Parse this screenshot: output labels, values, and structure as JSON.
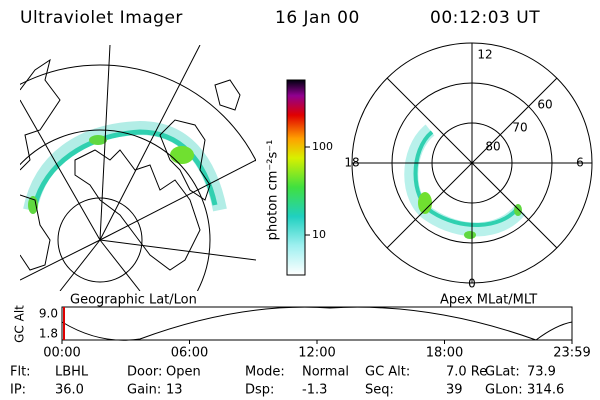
{
  "header": {
    "title": "Ultraviolet Imager",
    "date": "16 Jan 00",
    "time": "00:12:03 UT"
  },
  "geo_panel": {
    "label": "Geographic Lat/Lon"
  },
  "colorbar": {
    "label": "photon cm⁻²s⁻¹",
    "ticks": [
      "100",
      "10"
    ]
  },
  "apex_panel": {
    "label": "Apex MLat/MLT",
    "mlt_labels": [
      "12",
      "18",
      "6",
      "0"
    ],
    "lat_labels": [
      "80",
      "70",
      "60"
    ]
  },
  "timeline": {
    "axis_label": "GC Alt",
    "y_labels": [
      "9.0",
      "1.8"
    ],
    "x_labels": [
      "00:00",
      "06:00",
      "12:00",
      "18:00",
      "23:59"
    ]
  },
  "info": [
    [
      {
        "label": "Flt:",
        "value": "LBHL"
      },
      {
        "label": "Door:",
        "value": "Open"
      },
      {
        "label": "Mode:",
        "value": "Normal"
      },
      {
        "label": "GC Alt:",
        "value": "7.0 Re"
      },
      {
        "label": "GLat:",
        "value": "73.9"
      }
    ],
    [
      {
        "label": "IP:",
        "value": "36.0"
      },
      {
        "label": "Gain:",
        "value": "13"
      },
      {
        "label": "Dsp:",
        "value": "-1.3"
      },
      {
        "label": "Seq:",
        "value": "39"
      },
      {
        "label": "GLon:",
        "value": "314.6"
      }
    ]
  ]
}
